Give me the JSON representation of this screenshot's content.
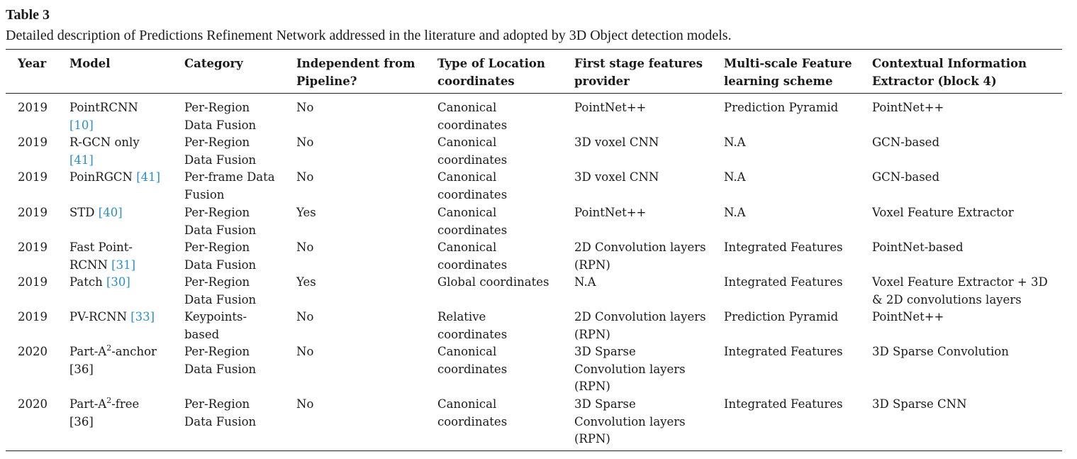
{
  "table": {
    "label": "Table 3",
    "caption": "Detailed description of Predictions Refinement Network addressed in the literature and adopted by 3D Object detection models.",
    "headers": [
      [
        "Year"
      ],
      [
        "Model"
      ],
      [
        "Category"
      ],
      [
        "Independent from",
        "Pipeline?"
      ],
      [
        "Type of Location",
        "coordinates"
      ],
      [
        "First stage features",
        "provider"
      ],
      [
        "Multi-scale Feature",
        "learning scheme"
      ],
      [
        "Contextual Information",
        "Extractor (block 4)"
      ]
    ],
    "rows": [
      {
        "year": "2019",
        "model": [
          "PointRCNN",
          ""
        ],
        "model_ref": [
          "",
          "[10]"
        ],
        "category": [
          "Per-Region",
          "Data Fusion"
        ],
        "independent": [
          "No"
        ],
        "location": [
          "Canonical",
          "coordinates"
        ],
        "provider": [
          "PointNet++"
        ],
        "multiscale": [
          "Prediction Pyramid"
        ],
        "context": [
          "PointNet++"
        ]
      },
      {
        "year": "2019",
        "model": [
          "R-GCN only",
          ""
        ],
        "model_ref": [
          "",
          "[41]"
        ],
        "category": [
          "Per-Region",
          "Data Fusion"
        ],
        "independent": [
          "No"
        ],
        "location": [
          "Canonical",
          "coordinates"
        ],
        "provider": [
          "3D voxel CNN"
        ],
        "multiscale": [
          "N.A"
        ],
        "context": [
          "GCN-based"
        ]
      },
      {
        "year": "2019",
        "model": [
          "PoinRGCN "
        ],
        "model_ref": [
          "[41]"
        ],
        "category": [
          "Per-frame Data",
          "Fusion"
        ],
        "independent": [
          "No"
        ],
        "location": [
          "Canonical",
          "coordinates"
        ],
        "provider": [
          "3D voxel CNN"
        ],
        "multiscale": [
          "N.A"
        ],
        "context": [
          "GCN-based"
        ]
      },
      {
        "year": "2019",
        "model": [
          "STD "
        ],
        "model_ref": [
          "[40]"
        ],
        "category": [
          "Per-Region",
          "Data Fusion"
        ],
        "independent": [
          "Yes"
        ],
        "location": [
          "Canonical",
          "coordinates"
        ],
        "provider": [
          "PointNet++"
        ],
        "multiscale": [
          "N.A"
        ],
        "context": [
          "Voxel Feature Extractor"
        ]
      },
      {
        "year": "2019",
        "model": [
          "Fast Point-",
          "RCNN "
        ],
        "model_ref": [
          "",
          "[31]"
        ],
        "category": [
          "Per-Region",
          "Data Fusion"
        ],
        "independent": [
          "No"
        ],
        "location": [
          "Canonical",
          "coordinates"
        ],
        "provider": [
          "2D Convolution layers",
          "(RPN)"
        ],
        "multiscale": [
          "Integrated Features"
        ],
        "context": [
          "PointNet-based"
        ]
      },
      {
        "year": "2019",
        "model": [
          "Patch "
        ],
        "model_ref": [
          "[30]"
        ],
        "category": [
          "Per-Region",
          "Data Fusion"
        ],
        "independent": [
          "Yes"
        ],
        "location": [
          "Global coordinates"
        ],
        "provider": [
          "N.A"
        ],
        "multiscale": [
          "Integrated Features"
        ],
        "context": [
          "Voxel Feature Extractor + 3D",
          "& 2D convolutions layers"
        ]
      },
      {
        "year": "2019",
        "model": [
          "PV-RCNN "
        ],
        "model_ref": [
          "[33]"
        ],
        "category": [
          "Keypoints-",
          "based"
        ],
        "independent": [
          "No"
        ],
        "location": [
          "Relative",
          "coordinates"
        ],
        "provider": [
          "2D Convolution layers",
          "(RPN)"
        ],
        "multiscale": [
          "Prediction Pyramid"
        ],
        "context": [
          "PointNet++"
        ]
      },
      {
        "year": "2020",
        "model_pre": "Part-A",
        "model_sup": "2",
        "model_post": "-anchor",
        "model_line2": "[36]",
        "category": [
          "Per-Region",
          "Data Fusion"
        ],
        "independent": [
          "No"
        ],
        "location": [
          "Canonical",
          "coordinates"
        ],
        "provider": [
          "3D Sparse",
          "Convolution layers",
          "(RPN)"
        ],
        "multiscale": [
          "Integrated Features"
        ],
        "context": [
          "3D Sparse Convolution"
        ]
      },
      {
        "year": "2020",
        "model_pre": "Part-A",
        "model_sup": "2",
        "model_post": "-free",
        "model_line2": "[36]",
        "category": [
          "Per-Region",
          "Data Fusion"
        ],
        "independent": [
          "No"
        ],
        "location": [
          "Canonical",
          "coordinates"
        ],
        "provider": [
          "3D Sparse",
          "Convolution layers",
          "(RPN)"
        ],
        "multiscale": [
          "Integrated Features"
        ],
        "context": [
          "3D Sparse CNN"
        ]
      }
    ]
  }
}
